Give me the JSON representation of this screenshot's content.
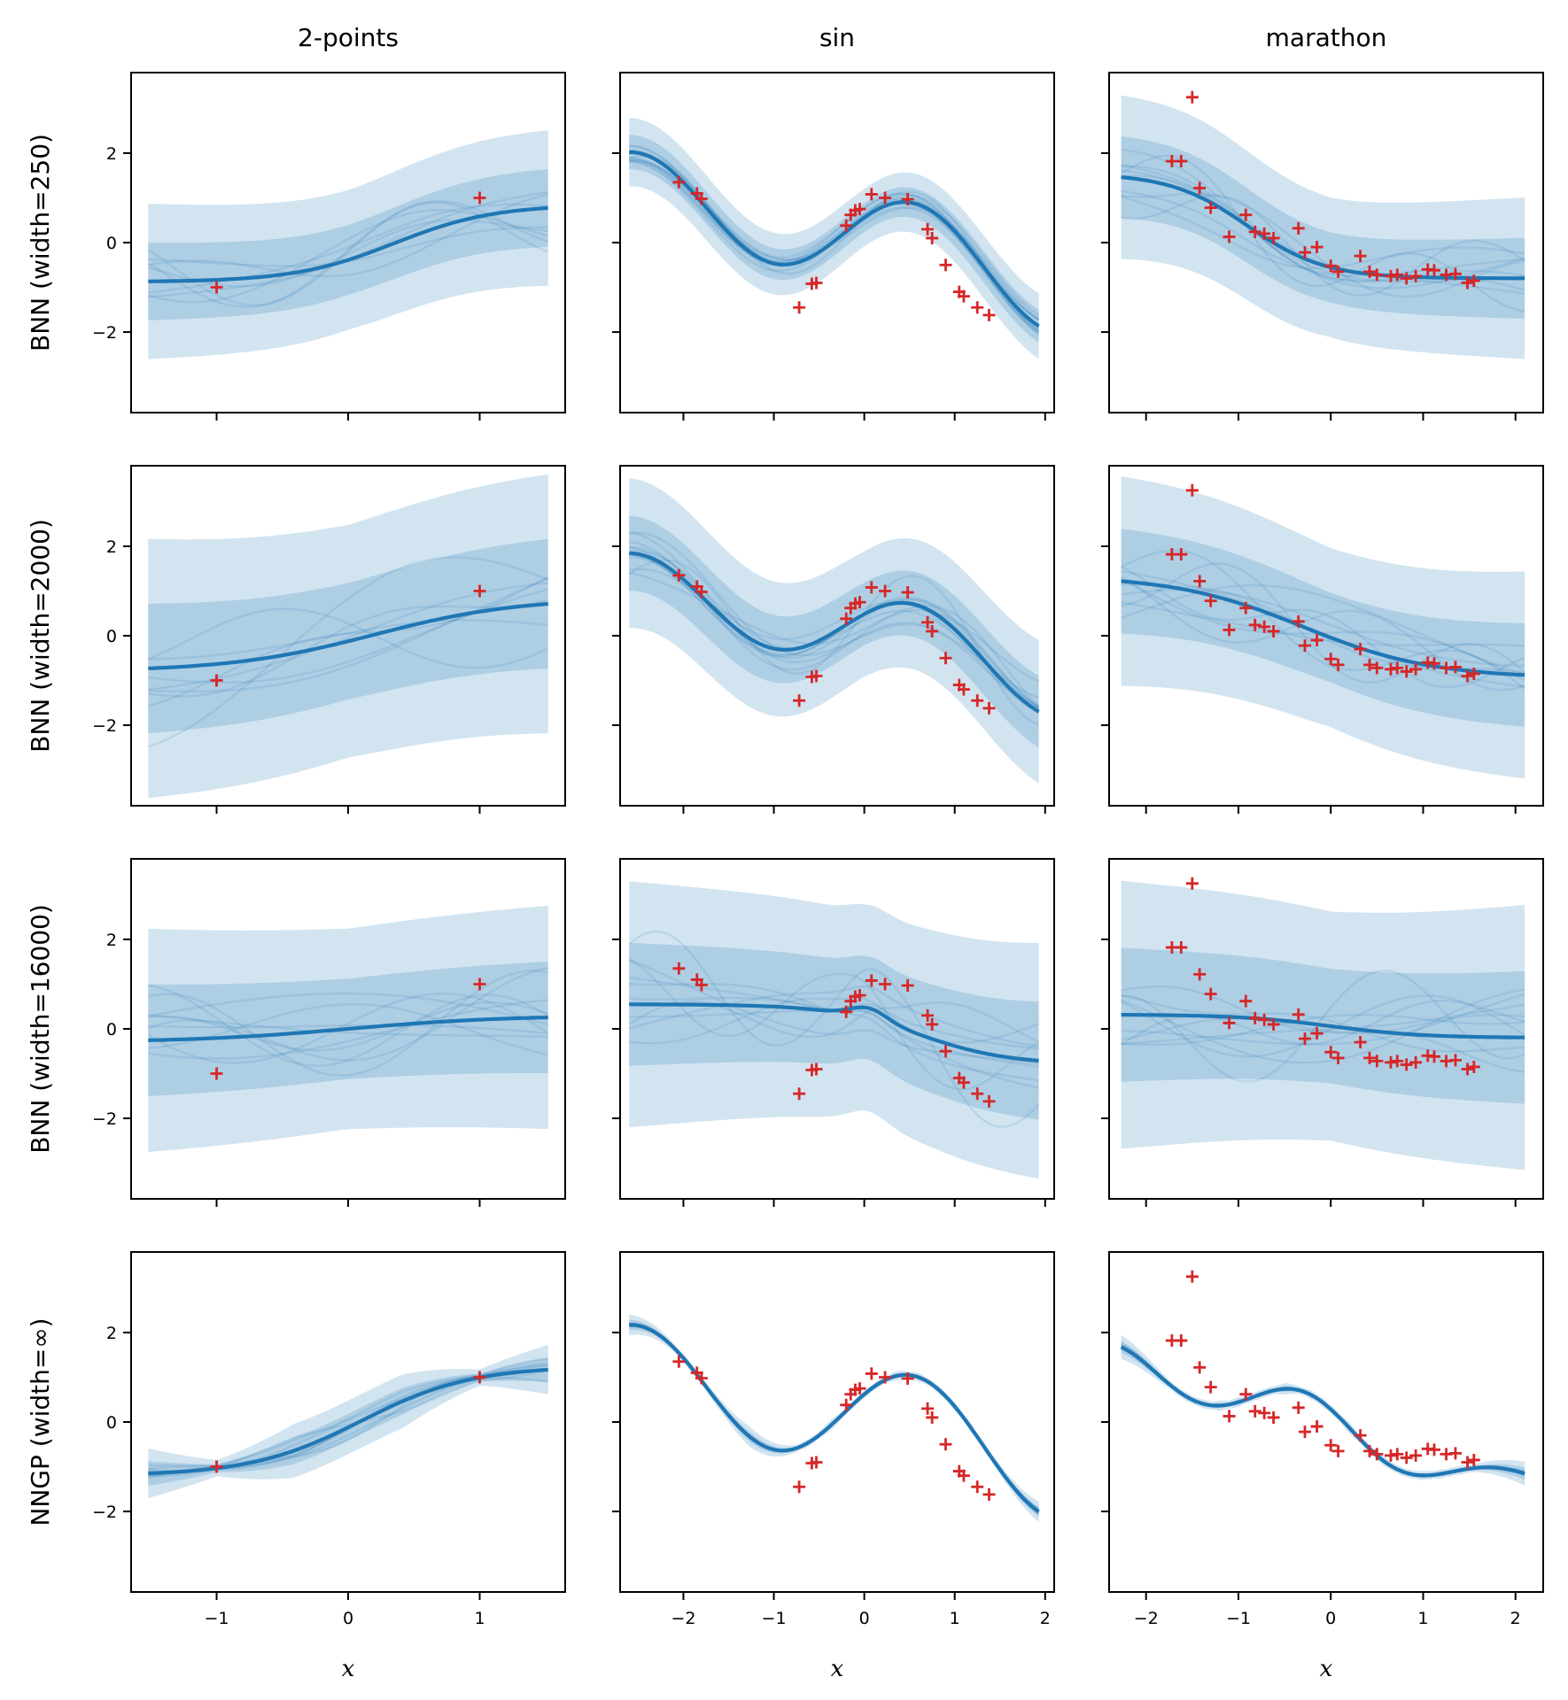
{
  "chart_data": {
    "type": "line",
    "layout": "grid",
    "columns": [
      "2-points",
      "sin",
      "marathon"
    ],
    "rows": [
      "BNN (width=250)",
      "BNN (width=2000)",
      "BNN (width=16000)",
      "NNGP (width=∞)"
    ],
    "xlabel": "x",
    "ylim": [
      -3.8,
      3.8
    ],
    "yticks": [
      -2,
      0,
      2
    ],
    "colors": {
      "mean": "#1f77b4",
      "band": "#1f77b4",
      "points": "#d62728",
      "frame": "#000000"
    },
    "x_axes": {
      "2-points": {
        "xlim": [
          -1.65,
          1.65
        ],
        "xticks": [
          -1,
          0,
          1
        ]
      },
      "sin": {
        "xlim": [
          -2.7,
          2.1
        ],
        "xticks": [
          -2,
          -1,
          0,
          1,
          2
        ]
      },
      "marathon": {
        "xlim": [
          -2.4,
          2.3
        ],
        "xticks": [
          -2,
          -1,
          0,
          1,
          2
        ]
      }
    },
    "datasets": {
      "2-points": {
        "x": [
          -1,
          1
        ],
        "y": [
          -1,
          1
        ]
      },
      "sin": {
        "x": [
          -2.05,
          -1.85,
          -1.8,
          -0.72,
          -0.58,
          -0.53,
          -0.2,
          -0.15,
          -0.1,
          -0.05,
          0.08,
          0.23,
          0.48,
          0.7,
          0.75,
          0.9,
          1.05,
          1.1,
          1.25,
          1.38
        ],
        "y": [
          1.35,
          1.1,
          0.98,
          -1.45,
          -0.92,
          -0.9,
          0.38,
          0.62,
          0.72,
          0.75,
          1.08,
          1.0,
          0.97,
          0.3,
          0.1,
          -0.5,
          -1.1,
          -1.2,
          -1.45,
          -1.62
        ]
      },
      "marathon": {
        "x": [
          -1.72,
          -1.62,
          -1.5,
          -1.42,
          -1.3,
          -1.1,
          -0.92,
          -0.82,
          -0.72,
          -0.62,
          -0.35,
          -0.28,
          -0.15,
          0.0,
          0.08,
          0.32,
          0.42,
          0.5,
          0.65,
          0.72,
          0.82,
          0.92,
          1.05,
          1.12,
          1.25,
          1.35,
          1.48,
          1.55
        ],
        "y": [
          1.82,
          1.82,
          3.25,
          1.22,
          0.78,
          0.13,
          0.62,
          0.24,
          0.2,
          0.1,
          0.32,
          -0.22,
          -0.1,
          -0.52,
          -0.65,
          -0.3,
          -0.65,
          -0.72,
          -0.75,
          -0.72,
          -0.8,
          -0.75,
          -0.6,
          -0.62,
          -0.72,
          -0.7,
          -0.9,
          -0.85
        ]
      }
    },
    "panels": [
      {
        "row": 0,
        "col": 0,
        "mean_type": "sigmoid",
        "mean_params": [
          -0.88,
          0.85,
          0.35,
          0.38
        ],
        "sd": 0.78,
        "sample_amp": 0.8,
        "n_samples": 8
      },
      {
        "row": 0,
        "col": 1,
        "mean_type": "sin_fit",
        "mean_params": [
          1.0
        ],
        "sd": 0.32,
        "sample_amp": 0.25,
        "n_samples": 14
      },
      {
        "row": 0,
        "col": 2,
        "mean_type": "sigmoid",
        "mean_params": [
          1.55,
          -0.8,
          -0.9,
          0.42
        ],
        "sd": 0.78,
        "sample_amp": 0.7,
        "n_samples": 10
      },
      {
        "row": 1,
        "col": 0,
        "mean_type": "sigmoid",
        "mean_params": [
          -0.8,
          0.85,
          0.2,
          0.55
        ],
        "sd": 1.3,
        "sample_amp": 1.2,
        "n_samples": 8
      },
      {
        "row": 1,
        "col": 1,
        "mean_type": "sin_fit",
        "mean_params": [
          0.82
        ],
        "sd": 0.7,
        "sample_amp": 0.6,
        "n_samples": 12
      },
      {
        "row": 1,
        "col": 2,
        "mean_type": "sigmoid",
        "mean_params": [
          1.35,
          -0.95,
          -0.3,
          0.7
        ],
        "sd": 1.0,
        "sample_amp": 0.9,
        "n_samples": 10
      },
      {
        "row": 2,
        "col": 0,
        "mean_type": "sigmoid",
        "mean_params": [
          -0.3,
          0.3,
          0.0,
          0.6
        ],
        "sd": 1.12,
        "sample_amp": 1.2,
        "n_samples": 10
      },
      {
        "row": 2,
        "col": 1,
        "mean_type": "sigmoid_bump",
        "mean_params": [
          0.55,
          -0.8,
          0.6,
          0.5
        ],
        "sd": 1.15,
        "sample_amp": 1.1,
        "n_samples": 10
      },
      {
        "row": 2,
        "col": 2,
        "mean_type": "sigmoid",
        "mean_params": [
          0.32,
          -0.2,
          0.0,
          0.5
        ],
        "sd": 1.28,
        "sample_amp": 1.5,
        "n_samples": 10
      },
      {
        "row": 3,
        "col": 0,
        "mean_type": "sigmoid",
        "mean_params": [
          -1.2,
          1.25,
          0.1,
          0.42
        ],
        "sd": 0.3,
        "sample_amp": 0.28,
        "n_samples": 10,
        "pinned": true
      },
      {
        "row": 3,
        "col": 1,
        "mean_type": "sin_fit",
        "mean_params": [
          1.15
        ],
        "sd": 0.12,
        "sample_amp": 0.08,
        "n_samples": 8,
        "pinned": true
      },
      {
        "row": 3,
        "col": 2,
        "mean_type": "marathon_fit",
        "mean_params": [],
        "sd": 0.14,
        "sample_amp": 0.1,
        "n_samples": 8,
        "pinned": true
      }
    ]
  }
}
